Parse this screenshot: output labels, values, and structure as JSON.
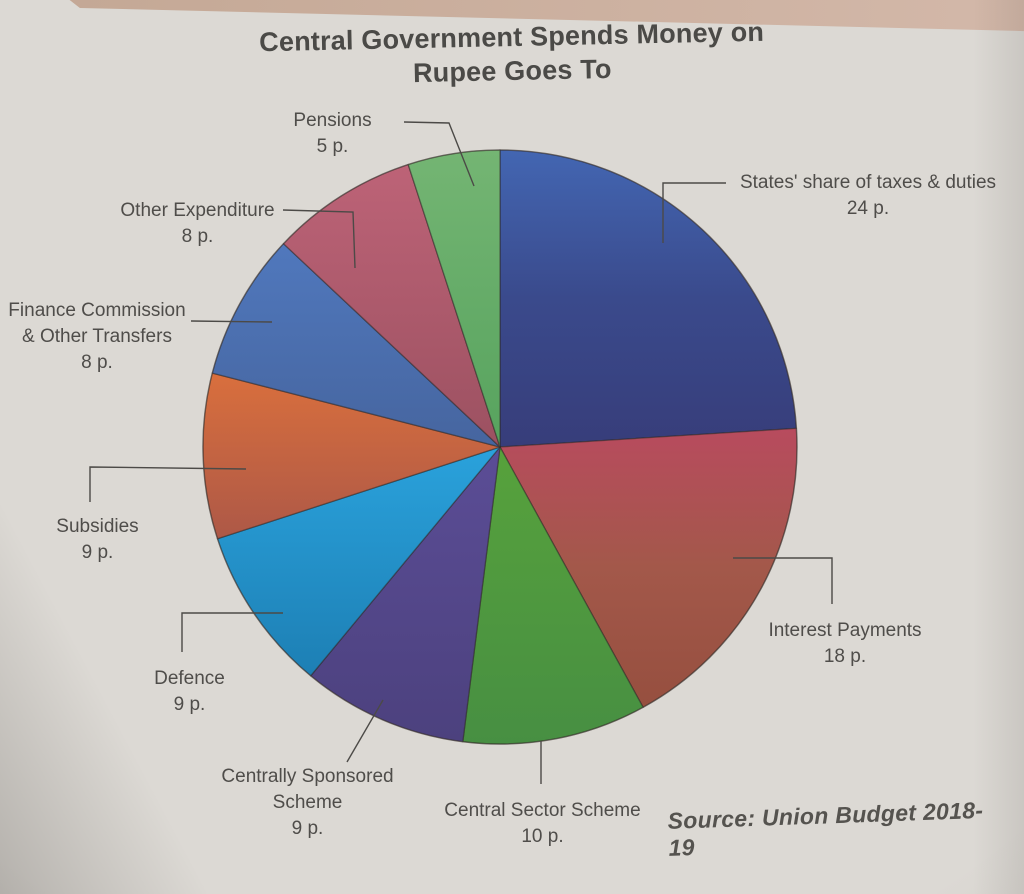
{
  "page": {
    "paper_color": "#dcd9d4",
    "top_band_color": "#ccb1a2",
    "text_color": "#4f4d4a"
  },
  "chart_data": {
    "type": "pie",
    "title_lines": [
      "Central Government Spends Money on",
      "Rupee Goes To"
    ],
    "title": "Central Government Spends Money on Rupee Goes To",
    "source": "Source: Union Budget 2018-19",
    "unit": "p. (paise per rupee)",
    "total": 100,
    "start_angle_deg": 0,
    "direction": "clockwise",
    "legend_position": "labels around pie with leader lines",
    "slices": [
      {
        "label": "States' share of taxes & duties",
        "value": 24,
        "value_label": "24 p.",
        "colors": [
          "#4366b2",
          "#3a4a8c",
          "#373d7a"
        ]
      },
      {
        "label": "Interest Payments",
        "value": 18,
        "value_label": "18 p.",
        "colors": [
          "#b84b5e",
          "#a3584a",
          "#964f3f"
        ]
      },
      {
        "label": "Central Sector Scheme",
        "value": 10,
        "value_label": "10 p.",
        "colors": [
          "#57a23c",
          "#478f42"
        ]
      },
      {
        "label": "Centrally Sponsored Scheme",
        "value": 9,
        "value_label": "9 p.",
        "colors": [
          "#5b4d96",
          "#4c417e"
        ]
      },
      {
        "label": "Defence",
        "value": 9,
        "value_label": "9 p.",
        "colors": [
          "#2aa2dc",
          "#1d7fb4"
        ]
      },
      {
        "label": "Subsidies",
        "value": 9,
        "value_label": "9 p.",
        "colors": [
          "#d96f3d",
          "#ad5847"
        ]
      },
      {
        "label": "Finance Commission & Other Transfers",
        "value": 8,
        "value_label": "8 p.",
        "colors": [
          "#5078bd",
          "#46659f"
        ]
      },
      {
        "label": "Other Expenditure",
        "value": 8,
        "value_label": "8 p.",
        "colors": [
          "#bd6377",
          "#9c5161"
        ]
      },
      {
        "label": "Pensions",
        "value": 5,
        "value_label": "5 p.",
        "colors": [
          "#74b573",
          "#57a35e"
        ]
      }
    ]
  }
}
